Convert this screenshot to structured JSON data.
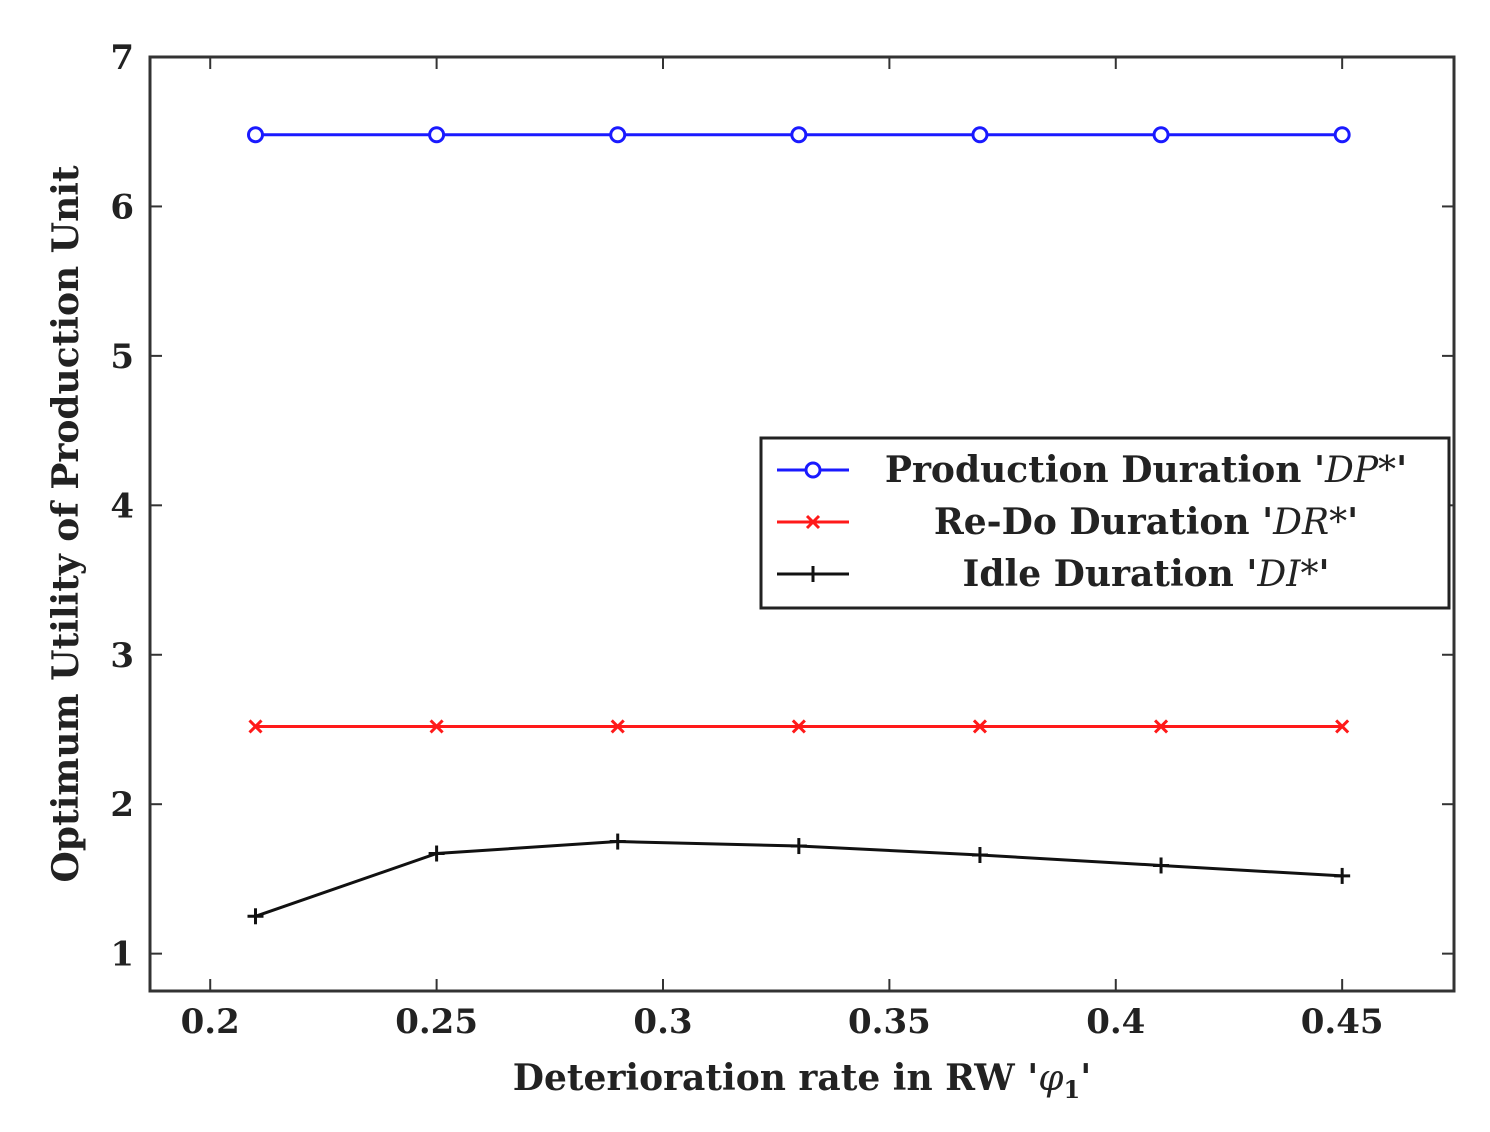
{
  "chart_data": {
    "type": "line",
    "x": [
      0.21,
      0.25,
      0.29,
      0.33,
      0.37,
      0.41,
      0.45
    ],
    "xlim": [
      0.1867,
      0.4747
    ],
    "ylim": [
      0.75,
      7
    ],
    "xticks": [
      "0.2",
      "0.25",
      "0.3",
      "0.35",
      "0.4",
      "0.45"
    ],
    "xtick_values": [
      0.2,
      0.25,
      0.3,
      0.35,
      0.4,
      0.45
    ],
    "yticks": [
      "1",
      "2",
      "3",
      "4",
      "5",
      "6",
      "7"
    ],
    "ytick_values": [
      1,
      2,
      3,
      4,
      5,
      6,
      7
    ],
    "xlabel_prefix": "Deterioration rate in RW '",
    "xlabel_symbol": "φ",
    "xlabel_sub": "1",
    "xlabel_suffix": "'",
    "ylabel": "Optimum Utility of Production Unit",
    "grid": false,
    "legend_position": "right-middle",
    "series": [
      {
        "name_prefix": "Production Duration '",
        "name_symbol": "DP*",
        "name_suffix": "'",
        "color": "#1a1aff",
        "marker": "circle",
        "values": [
          6.48,
          6.48,
          6.48,
          6.48,
          6.48,
          6.48,
          6.48
        ]
      },
      {
        "name_prefix": "Re-Do Duration '",
        "name_symbol": "DR*",
        "name_suffix": "'",
        "color": "#ff1a1a",
        "marker": "x",
        "values": [
          2.52,
          2.52,
          2.52,
          2.52,
          2.52,
          2.52,
          2.52
        ]
      },
      {
        "name_prefix": "Idle Duration '",
        "name_symbol": "DI*",
        "name_suffix": "'",
        "color": "#111111",
        "marker": "plus",
        "values": [
          1.25,
          1.67,
          1.75,
          1.72,
          1.66,
          1.59,
          1.52
        ]
      }
    ]
  }
}
